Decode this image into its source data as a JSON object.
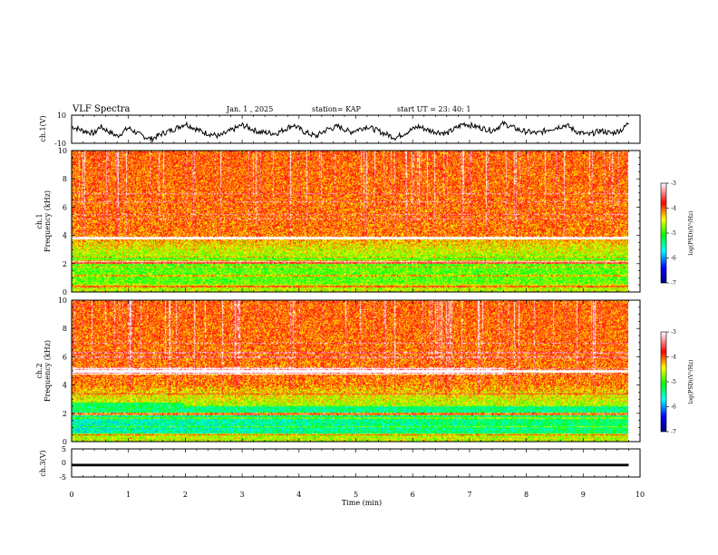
{
  "header": {
    "title": "VLF Spectra",
    "date": "Jan. 1 , 2025",
    "station": "station= KAP",
    "start": "start UT = 23: 40: 1"
  },
  "chart_data": [
    {
      "type": "line",
      "name": "ch1-waveform",
      "ylabel": "ch.1(V)",
      "ylim": [
        -10,
        10
      ],
      "ytick_labels": [
        "10",
        "-10"
      ],
      "xlim": [
        0,
        10
      ],
      "x_end": 9.8,
      "description_series": "waveform envelope, amplitude roughly -8 to 8 V",
      "control_points": [
        [
          0,
          2
        ],
        [
          0.2,
          -1
        ],
        [
          0.4,
          -3
        ],
        [
          0.5,
          2
        ],
        [
          0.8,
          -5
        ],
        [
          1.0,
          1
        ],
        [
          1.2,
          -4
        ],
        [
          1.4,
          -7
        ],
        [
          1.6,
          -3
        ],
        [
          1.8,
          0
        ],
        [
          2.0,
          4
        ],
        [
          2.1,
          2
        ],
        [
          2.3,
          -2
        ],
        [
          2.6,
          -5
        ],
        [
          2.8,
          -1
        ],
        [
          3.0,
          3
        ],
        [
          3.3,
          -2
        ],
        [
          3.6,
          -3
        ],
        [
          3.9,
          3
        ],
        [
          4.1,
          -2
        ],
        [
          4.3,
          -5
        ],
        [
          4.5,
          0
        ],
        [
          4.7,
          2
        ],
        [
          4.9,
          -2
        ],
        [
          5.2,
          2
        ],
        [
          5.5,
          -3
        ],
        [
          5.7,
          -6
        ],
        [
          5.9,
          -2
        ],
        [
          6.1,
          2
        ],
        [
          6.3,
          -1
        ],
        [
          6.6,
          -3
        ],
        [
          6.9,
          4
        ],
        [
          7.1,
          2
        ],
        [
          7.4,
          -1
        ],
        [
          7.6,
          4
        ],
        [
          7.9,
          -1
        ],
        [
          8.2,
          -3
        ],
        [
          8.4,
          0
        ],
        [
          8.7,
          3
        ],
        [
          8.9,
          -2
        ],
        [
          9.1,
          -4
        ],
        [
          9.3,
          -1
        ],
        [
          9.5,
          -3
        ],
        [
          9.7,
          0
        ],
        [
          9.8,
          5
        ]
      ]
    },
    {
      "type": "heatmap",
      "name": "ch1-spectrogram",
      "ylabel": "ch.1\nFrequency (kHz)",
      "ylabel_lines": [
        "ch.1",
        "Frequency (kHz)"
      ],
      "ylim": [
        0,
        10
      ],
      "ytick_labels": [
        "0",
        "2",
        "4",
        "6",
        "8",
        "10"
      ],
      "xlim": [
        0,
        10
      ],
      "x_end": 9.8,
      "colorbar": {
        "label": "log(PSD)(V²/Hz)",
        "range": [
          -7,
          -3
        ],
        "tick_labels": [
          "-3",
          "-4",
          "-5",
          "-6",
          "-7"
        ],
        "colors": [
          "#000080",
          "#0000ff",
          "#00ffff",
          "#00ff00",
          "#ffff00",
          "#ff0000",
          "#ffffff"
        ]
      },
      "line_features_khz": [
        0.4,
        1.2,
        1.8,
        2.2,
        2.5,
        3.8,
        5.2,
        5.5,
        6.4,
        7.0
      ],
      "strong_lines_khz": [
        2.1,
        3.85
      ]
    },
    {
      "type": "heatmap",
      "name": "ch2-spectrogram",
      "ylabel": "ch.2\nFrequency (kHz)",
      "ylabel_lines": [
        "ch.2",
        "Frequency (kHz)"
      ],
      "ylim": [
        0,
        10
      ],
      "ytick_labels": [
        "0",
        "2",
        "4",
        "6",
        "8",
        "10"
      ],
      "xlim": [
        0,
        10
      ],
      "x_end": 9.8,
      "colorbar": {
        "label": "log(PSD)(V²/Hz)",
        "range": [
          -7,
          -3
        ],
        "tick_labels": [
          "-3",
          "-4",
          "-5",
          "-6",
          "-7"
        ],
        "colors": [
          "#000080",
          "#0000ff",
          "#00ffff",
          "#00ff00",
          "#ffff00",
          "#ff0000",
          "#ffffff"
        ]
      },
      "line_features_khz": [
        0.5,
        1.1,
        1.7,
        2.0,
        3.4,
        4.8,
        5.0,
        5.2,
        6.0,
        6.3,
        7.0
      ],
      "strong_lines_khz": [
        2.0,
        5.0
      ]
    },
    {
      "type": "line",
      "name": "ch3-waveform",
      "ylabel": "ch.3(V)",
      "ylim": [
        -5,
        5
      ],
      "ytick_labels": [
        "5",
        "0",
        "-5"
      ],
      "xlim": [
        0,
        10
      ],
      "x_end": 9.8,
      "value_band": [
        -1.2,
        -0.3
      ]
    }
  ],
  "xaxis": {
    "label": "Time (min)",
    "range": [
      0,
      10
    ],
    "tick_labels": [
      "0",
      "1",
      "2",
      "3",
      "4",
      "5",
      "6",
      "7",
      "8",
      "9",
      "10"
    ]
  }
}
